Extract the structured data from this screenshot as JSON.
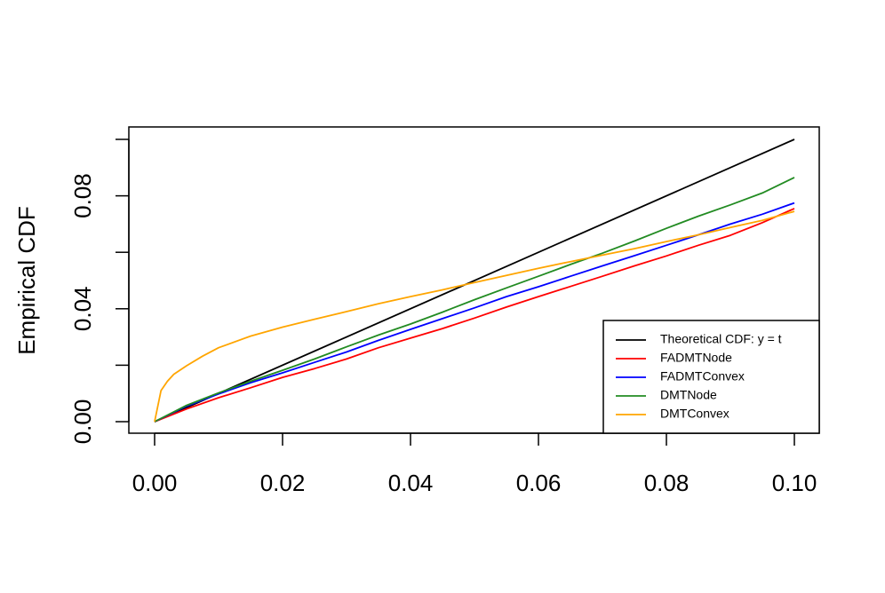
{
  "chart_data": {
    "type": "line",
    "title": "",
    "xlabel": "",
    "ylabel": "Empirical CDF",
    "xlim": [
      0,
      0.1
    ],
    "ylim": [
      0,
      0.1
    ],
    "x_ticks": [
      "0.00",
      "0.02",
      "0.04",
      "0.06",
      "0.08",
      "0.10"
    ],
    "y_ticks": [
      "0.00",
      "0.04",
      "0.08"
    ],
    "y_tick_values": [
      0,
      0.02,
      0.04,
      0.06,
      0.08,
      0.1
    ],
    "grid": false,
    "legend_position": "bottom-right",
    "series": [
      {
        "name": "Theoretical CDF: y = t",
        "color": "#000000",
        "x": [
          0,
          0.1
        ],
        "y": [
          0,
          0.1
        ]
      },
      {
        "name": "FADMTNode",
        "color": "#ff0000",
        "x": [
          0,
          0.005,
          0.01,
          0.015,
          0.02,
          0.025,
          0.03,
          0.035,
          0.04,
          0.045,
          0.05,
          0.055,
          0.06,
          0.065,
          0.07,
          0.075,
          0.08,
          0.085,
          0.09,
          0.095,
          0.1
        ],
        "y": [
          0,
          0.0045,
          0.0085,
          0.012,
          0.0157,
          0.0188,
          0.0222,
          0.0262,
          0.0296,
          0.033,
          0.0367,
          0.0406,
          0.0443,
          0.0479,
          0.0515,
          0.0552,
          0.0587,
          0.0625,
          0.066,
          0.0705,
          0.0755
        ]
      },
      {
        "name": "FADMTConvex",
        "color": "#0000ff",
        "x": [
          0,
          0.005,
          0.01,
          0.015,
          0.02,
          0.025,
          0.03,
          0.035,
          0.04,
          0.045,
          0.05,
          0.055,
          0.06,
          0.065,
          0.07,
          0.075,
          0.08,
          0.085,
          0.09,
          0.095,
          0.1
        ],
        "y": [
          0,
          0.0055,
          0.0098,
          0.0138,
          0.0173,
          0.021,
          0.0247,
          0.0288,
          0.0327,
          0.0365,
          0.0403,
          0.0443,
          0.0478,
          0.0515,
          0.0552,
          0.0588,
          0.0625,
          0.0662,
          0.07,
          0.0735,
          0.0775
        ]
      },
      {
        "name": "DMTNode",
        "color": "#228b22",
        "x": [
          0,
          0.005,
          0.01,
          0.015,
          0.02,
          0.025,
          0.03,
          0.035,
          0.04,
          0.045,
          0.05,
          0.055,
          0.06,
          0.065,
          0.07,
          0.075,
          0.08,
          0.085,
          0.09,
          0.095,
          0.1
        ],
        "y": [
          0,
          0.0058,
          0.0102,
          0.0143,
          0.0182,
          0.0222,
          0.0265,
          0.0307,
          0.0346,
          0.0388,
          0.0432,
          0.0474,
          0.0515,
          0.0557,
          0.0597,
          0.064,
          0.0685,
          0.0728,
          0.0768,
          0.081,
          0.0865
        ]
      },
      {
        "name": "DMTConvex",
        "color": "#ffa500",
        "x": [
          0,
          0.0005,
          0.001,
          0.002,
          0.003,
          0.005,
          0.0075,
          0.01,
          0.015,
          0.02,
          0.025,
          0.03,
          0.035,
          0.04,
          0.045,
          0.05,
          0.055,
          0.06,
          0.065,
          0.07,
          0.075,
          0.08,
          0.085,
          0.09,
          0.095,
          0.1
        ],
        "y": [
          0,
          0.0055,
          0.011,
          0.0143,
          0.0168,
          0.0198,
          0.0232,
          0.0262,
          0.0303,
          0.0335,
          0.0363,
          0.039,
          0.0418,
          0.0443,
          0.0467,
          0.0493,
          0.0518,
          0.0543,
          0.0567,
          0.059,
          0.0613,
          0.0638,
          0.0662,
          0.0688,
          0.0713,
          0.0745
        ]
      }
    ]
  }
}
